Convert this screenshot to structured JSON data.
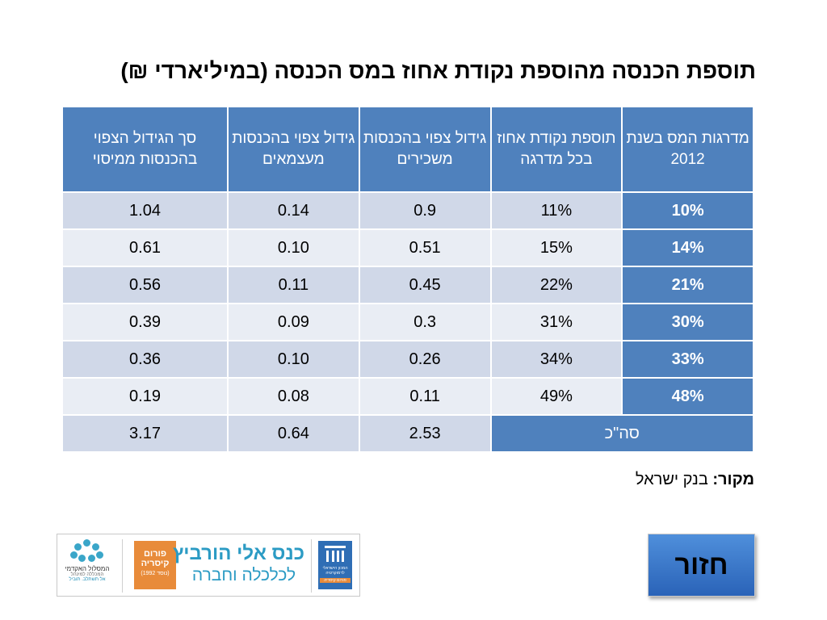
{
  "title": "תוספת הכנסה מהוספת נקודת אחוז במס הכנסה (במיליארדי ₪)",
  "table": {
    "headers": [
      "מדרגות המס בשנת 2012",
      "תוספת נקודת אחוז בכל מדרגה",
      "גידול צפוי בהכנסות משכירים",
      "גידול צפוי בהכנסות מעצמאים",
      "סך הגידול הצפוי בהכנסות ממיסוי"
    ],
    "rows": [
      [
        "10%",
        "11%",
        "0.9",
        "0.14",
        "1.04"
      ],
      [
        "14%",
        "15%",
        "0.51",
        "0.10",
        "0.61"
      ],
      [
        "21%",
        "22%",
        "0.45",
        "0.11",
        "0.56"
      ],
      [
        "30%",
        "31%",
        "0.3",
        "0.09",
        "0.39"
      ],
      [
        "33%",
        "34%",
        "0.26",
        "0.10",
        "0.36"
      ],
      [
        "48%",
        "49%",
        "0.11",
        "0.08",
        "0.19"
      ]
    ],
    "total": {
      "label": "סה\"כ",
      "values": [
        "2.53",
        "0.64",
        "3.17"
      ]
    }
  },
  "source": {
    "label": "מקור:",
    "text": "בנק ישראל"
  },
  "banner": {
    "left_logo_title": "המסלול האקדמי",
    "left_logo_sub": "המכללה למינהל",
    "left_logo_tag": "אל תשתלב. תוביל",
    "forum_line1": "פורום",
    "forum_line2": "קיסריה",
    "forum_line3": "(נוסד 1992)",
    "conference_line1": "כנס אלי הורביץ",
    "conference_line2": "לכלכלה וחברה",
    "institute_text": "המכון הישראלי לדמוקרטיה",
    "institute_tag": "פורום קיסריה"
  },
  "back_button": {
    "label": "חזור"
  },
  "colors": {
    "header_blue": "#4f81bd",
    "row_dark": "#d0d8e8",
    "row_light": "#e9edf4",
    "button_blue": "#3b7bd0",
    "logo_orange": "#e88b3a"
  }
}
